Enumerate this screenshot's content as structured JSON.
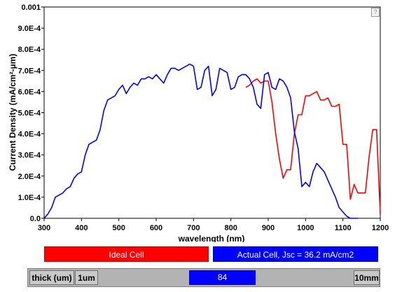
{
  "chart_data": {
    "type": "line",
    "xlabel": "wavelength (nm)",
    "ylabel": "Current Density (mA/cm²-µm)",
    "xlim": [
      300,
      1200
    ],
    "ylim": [
      0,
      0.001
    ],
    "x_ticks": [
      300,
      400,
      500,
      600,
      700,
      800,
      900,
      1000,
      1100,
      1200
    ],
    "x_tick_labels": [
      "300",
      "400",
      "500",
      "600",
      "700",
      "800",
      "900",
      "1000",
      "1100",
      "1200"
    ],
    "y_ticks": [
      0,
      0.0001,
      0.0002,
      0.0003,
      0.0004,
      0.0005,
      0.0006,
      0.0007,
      0.0008,
      0.0009,
      0.001
    ],
    "y_tick_labels": [
      "0.0",
      "1.0E-4",
      "2.0E-4",
      "3.0E-4",
      "4.0E-4",
      "5.0E-4",
      "6.0E-4",
      "7.0E-4",
      "8.0E-4",
      "9.0E-4",
      "0.001"
    ],
    "grid": false,
    "series": [
      {
        "name": "Ideal Cell",
        "color": "#ff0000",
        "points": [
          [
            840,
            0.00062
          ],
          [
            850,
            0.00063
          ],
          [
            860,
            0.00065
          ],
          [
            870,
            0.00066
          ],
          [
            880,
            0.00064
          ],
          [
            890,
            0.00065
          ],
          [
            900,
            0.00065
          ],
          [
            910,
            0.00055
          ],
          [
            920,
            0.0004
          ],
          [
            930,
            0.00028
          ],
          [
            940,
            0.00019
          ],
          [
            950,
            0.00023
          ],
          [
            960,
            0.00023
          ],
          [
            970,
            0.0004
          ],
          [
            980,
            0.00049
          ],
          [
            990,
            0.00049
          ],
          [
            1000,
            0.00058
          ],
          [
            1010,
            0.00058
          ],
          [
            1020,
            0.00059
          ],
          [
            1030,
            0.0006
          ],
          [
            1040,
            0.00056
          ],
          [
            1050,
            0.00056
          ],
          [
            1060,
            0.00057
          ],
          [
            1070,
            0.00053
          ],
          [
            1080,
            0.00053
          ],
          [
            1090,
            0.00054
          ],
          [
            1100,
            0.00035
          ],
          [
            1110,
            0.00035
          ],
          [
            1120,
            9e-05
          ],
          [
            1130,
            0.00016
          ],
          [
            1140,
            0.00012
          ],
          [
            1150,
            0.00012
          ],
          [
            1160,
            0.00012
          ],
          [
            1170,
            0.00029
          ],
          [
            1180,
            0.00042
          ],
          [
            1190,
            0.00042
          ],
          [
            1200,
            2e-05
          ]
        ]
      },
      {
        "name": "Actual Cell, Jsc = 36.2 mA/cm2",
        "color": "#0000ff",
        "points": [
          [
            300,
            0.0
          ],
          [
            310,
            2e-05
          ],
          [
            320,
            5e-05
          ],
          [
            330,
            0.0001
          ],
          [
            340,
            0.00011
          ],
          [
            350,
            0.00012
          ],
          [
            360,
            0.00014
          ],
          [
            370,
            0.00015
          ],
          [
            380,
            0.00019
          ],
          [
            390,
            0.00021
          ],
          [
            400,
            0.00022
          ],
          [
            410,
            0.0003
          ],
          [
            420,
            0.00035
          ],
          [
            430,
            0.00036
          ],
          [
            440,
            0.00037
          ],
          [
            450,
            0.00042
          ],
          [
            460,
            0.00051
          ],
          [
            470,
            0.00056
          ],
          [
            480,
            0.00057
          ],
          [
            490,
            0.00058
          ],
          [
            500,
            0.00061
          ],
          [
            510,
            0.00063
          ],
          [
            520,
            0.00059
          ],
          [
            530,
            0.00062
          ],
          [
            540,
            0.00064
          ],
          [
            550,
            0.00063
          ],
          [
            560,
            0.00066
          ],
          [
            570,
            0.00066
          ],
          [
            580,
            0.00067
          ],
          [
            590,
            0.00066
          ],
          [
            600,
            0.00068
          ],
          [
            610,
            0.00066
          ],
          [
            620,
            0.00064
          ],
          [
            630,
            0.00068
          ],
          [
            640,
            0.00071
          ],
          [
            650,
            0.00071
          ],
          [
            660,
            0.0007
          ],
          [
            670,
            0.00071
          ],
          [
            680,
            0.00072
          ],
          [
            690,
            0.00073
          ],
          [
            700,
            0.00072
          ],
          [
            710,
            0.00061
          ],
          [
            720,
            0.00062
          ],
          [
            730,
            0.0007
          ],
          [
            740,
            0.00072
          ],
          [
            750,
            0.00058
          ],
          [
            760,
            0.00061
          ],
          [
            770,
            0.00071
          ],
          [
            780,
            0.0007
          ],
          [
            790,
            0.00069
          ],
          [
            800,
            0.00061
          ],
          [
            810,
            0.00062
          ],
          [
            820,
            0.00067
          ],
          [
            830,
            0.00068
          ],
          [
            840,
            0.00068
          ],
          [
            850,
            0.00066
          ],
          [
            860,
            0.00062
          ],
          [
            870,
            0.00054
          ],
          [
            880,
            0.00052
          ],
          [
            890,
            0.00068
          ],
          [
            900,
            0.00069
          ],
          [
            910,
            0.00062
          ],
          [
            920,
            0.00061
          ],
          [
            930,
            0.00066
          ],
          [
            940,
            0.00065
          ],
          [
            950,
            0.00062
          ],
          [
            960,
            0.00057
          ],
          [
            970,
            0.00041
          ],
          [
            980,
            0.00033
          ],
          [
            990,
            0.00015
          ],
          [
            1000,
            0.00017
          ],
          [
            1010,
            0.00015
          ],
          [
            1020,
            0.00022
          ],
          [
            1030,
            0.00026
          ],
          [
            1040,
            0.00024
          ],
          [
            1050,
            0.00022
          ],
          [
            1060,
            0.00018
          ],
          [
            1070,
            0.00014
          ],
          [
            1080,
            0.0001
          ],
          [
            1090,
            5e-05
          ],
          [
            1100,
            3e-05
          ],
          [
            1110,
            1e-05
          ],
          [
            1120,
            0.0
          ],
          [
            1130,
            0.0
          ],
          [
            1140,
            0.0
          ]
        ]
      }
    ]
  },
  "help_label": "?",
  "legend": {
    "ideal_label": "Ideal Cell",
    "actual_label": "Actual Cell, Jsc = 36.2 mA/cm2"
  },
  "thickness_control": {
    "label": "thick (um)",
    "min_label": "1um",
    "max_label": "10mm",
    "value": "84"
  }
}
